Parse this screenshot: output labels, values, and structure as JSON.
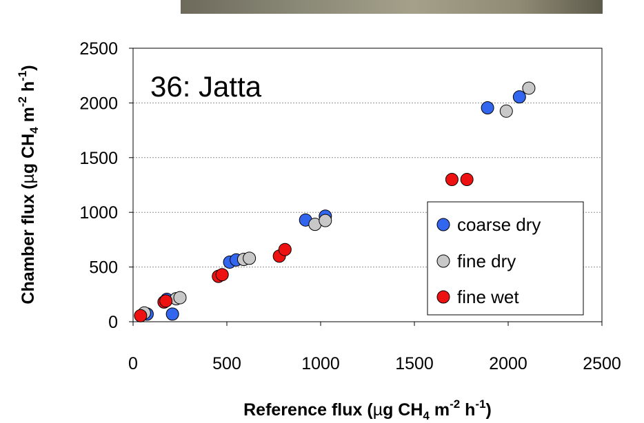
{
  "chart_data": {
    "type": "scatter",
    "annotation": "36: Jatta",
    "xlabel": {
      "main": "Reference flux (",
      "mu": "µ",
      "unit1": "g CH",
      "sub4": "4",
      "unit2": " m",
      "sup1": "-2",
      "unit3": " h",
      "sup2": "-1",
      "close": ")"
    },
    "ylabel": {
      "main": "Chamber flux (",
      "mu": "µ",
      "unit1": "g CH",
      "sub4": "4",
      "unit2": " m",
      "sup1": "-2",
      "unit3": " h",
      "sup2": "-1",
      "close": ")"
    },
    "xlim": [
      0,
      2500
    ],
    "ylim": [
      0,
      2500
    ],
    "x_ticks": [
      0,
      500,
      1000,
      1500,
      2000,
      2500
    ],
    "y_ticks": [
      0,
      500,
      1000,
      1500,
      2000,
      2500
    ],
    "grid": "horizontal dotted",
    "legend_position": "right",
    "series": [
      {
        "name": "coarse dry",
        "color": "#3366ee",
        "points": [
          [
            75,
            70
          ],
          [
            180,
            205
          ],
          [
            210,
            70
          ],
          [
            515,
            545
          ],
          [
            550,
            565
          ],
          [
            920,
            930
          ],
          [
            1025,
            965
          ],
          [
            1890,
            1955
          ],
          [
            2060,
            2055
          ]
        ]
      },
      {
        "name": "fine dry",
        "color": "#c8c8c8",
        "points": [
          [
            60,
            80
          ],
          [
            230,
            210
          ],
          [
            250,
            220
          ],
          [
            590,
            570
          ],
          [
            620,
            580
          ],
          [
            970,
            890
          ],
          [
            1025,
            925
          ],
          [
            1990,
            1925
          ],
          [
            2110,
            2135
          ]
        ]
      },
      {
        "name": "fine wet",
        "color": "#ee1111",
        "points": [
          [
            40,
            55
          ],
          [
            165,
            180
          ],
          [
            175,
            190
          ],
          [
            455,
            415
          ],
          [
            475,
            430
          ],
          [
            780,
            600
          ],
          [
            810,
            660
          ],
          [
            1700,
            1300
          ],
          [
            1780,
            1300
          ]
        ]
      }
    ]
  }
}
